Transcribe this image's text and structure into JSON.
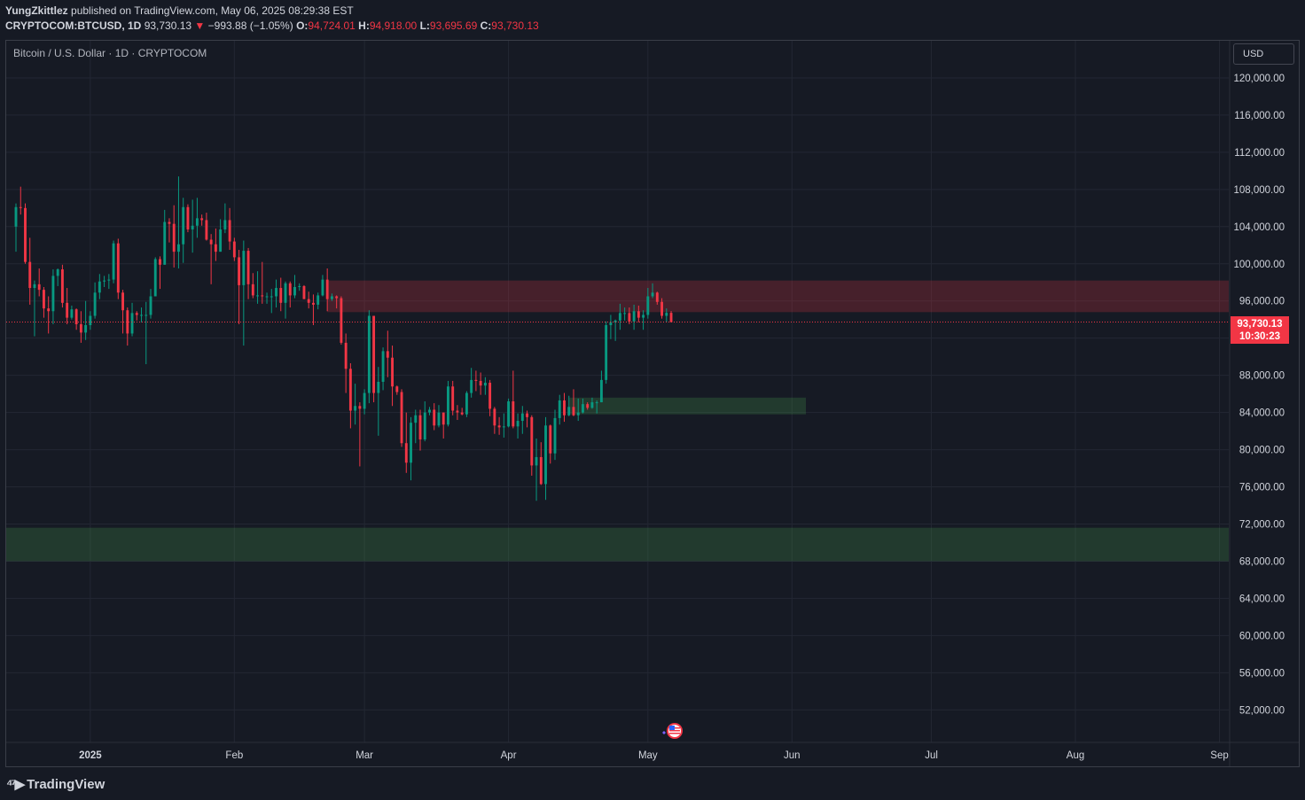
{
  "header": {
    "author": "YungZkittlez",
    "published_text": "published on TradingView.com, May 06, 2025 08:29:38 EST",
    "symbol": "CRYPTOCOM:BTCUSD, 1D",
    "last": "93,730.13",
    "change_arrow": "▼",
    "change": "−993.88 (−1.05%)",
    "o_label": "O:",
    "o": "94,724.01",
    "h_label": "H:",
    "h": "94,918.00",
    "l_label": "L:",
    "l": "93,695.69",
    "c_label": "C:",
    "c": "93,730.13"
  },
  "legend": {
    "title": "Bitcoin / U.S. Dollar · 1D · CRYPTOCOM"
  },
  "currency_button": "USD",
  "price_tag": {
    "price": "93,730.13",
    "countdown": "10:30:23"
  },
  "footer": {
    "brand": "TradingView"
  },
  "colors": {
    "up": "#089981",
    "down": "#f23645",
    "background": "#161a24",
    "supply_zone": "#f23645",
    "demand_zone": "#4caf50"
  },
  "chart_data": {
    "type": "candlestick",
    "symbol": "BTCUSD",
    "timeframe": "1D",
    "ylim": [
      48500,
      124000
    ],
    "y_ticks": [
      52000,
      56000,
      60000,
      64000,
      68000,
      72000,
      76000,
      80000,
      84000,
      88000,
      92000,
      96000,
      100000,
      104000,
      108000,
      112000,
      116000,
      120000
    ],
    "y_tick_labels": [
      "52,000.00",
      "56,000.00",
      "60,000.00",
      "64,000.00",
      "68,000.00",
      "72,000.00",
      "76,000.00",
      "80,000.00",
      "84,000.00",
      "88,000.00",
      "",
      "96,000.00",
      "100,000.00",
      "104,000.00",
      "108,000.00",
      "112,000.00",
      "116,000.00",
      "120,000.00"
    ],
    "x_range": [
      "2024-12-16",
      "2025-09-03"
    ],
    "x_ticks": [
      {
        "date": "2025-01-01",
        "label": "2025",
        "bold": true
      },
      {
        "date": "2025-02-01",
        "label": "Feb"
      },
      {
        "date": "2025-03-01",
        "label": "Mar"
      },
      {
        "date": "2025-04-01",
        "label": "Apr"
      },
      {
        "date": "2025-05-01",
        "label": "May"
      },
      {
        "date": "2025-06-01",
        "label": "Jun"
      },
      {
        "date": "2025-07-01",
        "label": "Jul"
      },
      {
        "date": "2025-08-01",
        "label": "Aug"
      },
      {
        "date": "2025-09-01",
        "label": "Sep"
      }
    ],
    "last_price": 93730.13,
    "zones": [
      {
        "type": "supply",
        "from": "2025-02-21",
        "to_edge": true,
        "low": 94800,
        "high": 98200
      },
      {
        "type": "demand",
        "from": "2025-04-14",
        "to": "2025-06-04",
        "low": 83800,
        "high": 85600
      },
      {
        "type": "demand",
        "from_edge": true,
        "to_edge": true,
        "low": 68000,
        "high": 71600
      }
    ],
    "candles": [
      [
        "2024-12-16",
        104000,
        106500,
        101300,
        106100
      ],
      [
        "2024-12-17",
        106100,
        108300,
        105300,
        106000
      ],
      [
        "2024-12-18",
        106000,
        106500,
        100000,
        100200
      ],
      [
        "2024-12-19",
        100200,
        102800,
        95600,
        97400
      ],
      [
        "2024-12-20",
        97400,
        98200,
        92200,
        97800
      ],
      [
        "2024-12-21",
        97800,
        99500,
        96500,
        97200
      ],
      [
        "2024-12-22",
        97200,
        97500,
        94200,
        95200
      ],
      [
        "2024-12-23",
        95200,
        96500,
        92500,
        94900
      ],
      [
        "2024-12-24",
        94900,
        99400,
        93500,
        98700
      ],
      [
        "2024-12-25",
        98700,
        99500,
        97600,
        99400
      ],
      [
        "2024-12-26",
        99400,
        99900,
        95300,
        95800
      ],
      [
        "2024-12-27",
        95800,
        97400,
        93500,
        94200
      ],
      [
        "2024-12-28",
        94200,
        95500,
        94000,
        95100
      ],
      [
        "2024-12-29",
        95100,
        95200,
        92900,
        93500
      ],
      [
        "2024-12-30",
        93500,
        94900,
        91500,
        92600
      ],
      [
        "2024-12-31",
        92600,
        96000,
        91800,
        93400
      ],
      [
        "2025-01-01",
        93400,
        94900,
        92900,
        94400
      ],
      [
        "2025-01-02",
        94400,
        98000,
        94100,
        96900
      ],
      [
        "2025-01-03",
        96900,
        98900,
        96200,
        98100
      ],
      [
        "2025-01-04",
        98100,
        98700,
        97500,
        98200
      ],
      [
        "2025-01-05",
        98200,
        98900,
        97300,
        98300
      ],
      [
        "2025-01-06",
        98300,
        102500,
        97900,
        102200
      ],
      [
        "2025-01-07",
        102200,
        102700,
        96200,
        96900
      ],
      [
        "2025-01-08",
        96900,
        97200,
        92500,
        95000
      ],
      [
        "2025-01-09",
        95000,
        95300,
        91200,
        92500
      ],
      [
        "2025-01-10",
        92500,
        95800,
        92200,
        94700
      ],
      [
        "2025-01-11",
        94700,
        94900,
        93900,
        94500
      ],
      [
        "2025-01-12",
        94500,
        95300,
        93700,
        94500
      ],
      [
        "2025-01-13",
        94500,
        95900,
        89200,
        94500
      ],
      [
        "2025-01-14",
        94500,
        97300,
        94100,
        96500
      ],
      [
        "2025-01-15",
        96500,
        100700,
        96500,
        100500
      ],
      [
        "2025-01-16",
        100500,
        100800,
        97300,
        99900
      ],
      [
        "2025-01-17",
        99900,
        105800,
        99900,
        104500
      ],
      [
        "2025-01-18",
        104500,
        104900,
        102300,
        104300
      ],
      [
        "2025-01-19",
        104300,
        106300,
        99600,
        101300
      ],
      [
        "2025-01-20",
        101300,
        109400,
        99500,
        102100
      ],
      [
        "2025-01-21",
        102100,
        107100,
        100100,
        106100
      ],
      [
        "2025-01-22",
        106100,
        106400,
        103400,
        103700
      ],
      [
        "2025-01-23",
        103700,
        106900,
        101200,
        104100
      ],
      [
        "2025-01-24",
        104100,
        107100,
        102800,
        104900
      ],
      [
        "2025-01-25",
        104900,
        105300,
        104100,
        104700
      ],
      [
        "2025-01-26",
        104700,
        105500,
        102500,
        102600
      ],
      [
        "2025-01-27",
        102600,
        103200,
        97800,
        102100
      ],
      [
        "2025-01-28",
        102100,
        103800,
        100300,
        101300
      ],
      [
        "2025-01-29",
        101300,
        104800,
        101300,
        103700
      ],
      [
        "2025-01-30",
        103700,
        106500,
        103300,
        104700
      ],
      [
        "2025-01-31",
        104700,
        106000,
        101500,
        102400
      ],
      [
        "2025-02-01",
        102400,
        102800,
        100300,
        100700
      ],
      [
        "2025-02-02",
        100700,
        101500,
        93500,
        97700
      ],
      [
        "2025-02-03",
        97700,
        102500,
        91200,
        101400
      ],
      [
        "2025-02-04",
        101400,
        101700,
        96200,
        97800
      ],
      [
        "2025-02-05",
        97800,
        99000,
        96300,
        96600
      ],
      [
        "2025-02-06",
        96600,
        99200,
        95700,
        96600
      ],
      [
        "2025-02-07",
        96600,
        100200,
        95700,
        96500
      ],
      [
        "2025-02-08",
        96500,
        96900,
        95700,
        96500
      ],
      [
        "2025-02-09",
        96500,
        97300,
        94700,
        96500
      ],
      [
        "2025-02-10",
        96500,
        98300,
        95300,
        97400
      ],
      [
        "2025-02-11",
        97400,
        98500,
        94900,
        95800
      ],
      [
        "2025-02-12",
        95800,
        98100,
        94100,
        97900
      ],
      [
        "2025-02-13",
        97900,
        98100,
        95300,
        96600
      ],
      [
        "2025-02-14",
        96600,
        98800,
        96300,
        97500
      ],
      [
        "2025-02-15",
        97500,
        97900,
        97100,
        97600
      ],
      [
        "2025-02-16",
        97600,
        97700,
        96200,
        96200
      ],
      [
        "2025-02-17",
        96200,
        97000,
        95200,
        95800
      ],
      [
        "2025-02-18",
        95800,
        96700,
        93400,
        95600
      ],
      [
        "2025-02-19",
        95600,
        96900,
        95100,
        96600
      ],
      [
        "2025-02-20",
        96600,
        98800,
        96500,
        98300
      ],
      [
        "2025-02-21",
        98300,
        99500,
        94900,
        96200
      ],
      [
        "2025-02-22",
        96200,
        96800,
        96000,
        96500
      ],
      [
        "2025-02-23",
        96500,
        96600,
        95200,
        96300
      ],
      [
        "2025-02-24",
        96300,
        96500,
        91300,
        91500
      ],
      [
        "2025-02-25",
        91500,
        92500,
        86100,
        88700
      ],
      [
        "2025-02-26",
        88700,
        89300,
        82300,
        84200
      ],
      [
        "2025-02-27",
        84200,
        87100,
        82700,
        84700
      ],
      [
        "2025-02-28",
        84700,
        85100,
        78200,
        84400
      ],
      [
        "2025-03-01",
        84400,
        86500,
        83800,
        86100
      ],
      [
        "2025-03-02",
        86100,
        95000,
        85000,
        94400
      ],
      [
        "2025-03-03",
        94400,
        94400,
        85100,
        86100
      ],
      [
        "2025-03-04",
        86100,
        88900,
        81500,
        87300
      ],
      [
        "2025-03-05",
        87300,
        91000,
        86400,
        90600
      ],
      [
        "2025-03-06",
        90600,
        92800,
        87800,
        89900
      ],
      [
        "2025-03-07",
        89900,
        91200,
        84700,
        86800
      ],
      [
        "2025-03-08",
        86800,
        86900,
        85900,
        86200
      ],
      [
        "2025-03-09",
        86200,
        86500,
        80300,
        80700
      ],
      [
        "2025-03-10",
        80700,
        84000,
        77500,
        78600
      ],
      [
        "2025-03-11",
        78600,
        83500,
        76700,
        82900
      ],
      [
        "2025-03-12",
        82900,
        84300,
        80700,
        83700
      ],
      [
        "2025-03-13",
        83700,
        84300,
        79900,
        81100
      ],
      [
        "2025-03-14",
        81100,
        85200,
        80900,
        84000
      ],
      [
        "2025-03-15",
        84000,
        84600,
        83700,
        84300
      ],
      [
        "2025-03-16",
        84300,
        85000,
        82100,
        82600
      ],
      [
        "2025-03-17",
        82600,
        84800,
        82400,
        84000
      ],
      [
        "2025-03-18",
        84000,
        84000,
        81200,
        82700
      ],
      [
        "2025-03-19",
        82700,
        87400,
        82500,
        86800
      ],
      [
        "2025-03-20",
        86800,
        87400,
        83700,
        84200
      ],
      [
        "2025-03-21",
        84200,
        84800,
        83200,
        84000
      ],
      [
        "2025-03-22",
        84000,
        84500,
        83700,
        83800
      ],
      [
        "2025-03-23",
        83800,
        86300,
        83500,
        86100
      ],
      [
        "2025-03-24",
        86100,
        88800,
        85600,
        87500
      ],
      [
        "2025-03-25",
        87500,
        88500,
        86300,
        87400
      ],
      [
        "2025-03-26",
        87400,
        88300,
        85900,
        86900
      ],
      [
        "2025-03-27",
        86900,
        87800,
        85900,
        87200
      ],
      [
        "2025-03-28",
        87200,
        87500,
        83600,
        84400
      ],
      [
        "2025-03-29",
        84400,
        84600,
        81700,
        82600
      ],
      [
        "2025-03-30",
        82600,
        83500,
        81600,
        82400
      ],
      [
        "2025-03-31",
        82400,
        83900,
        81300,
        82500
      ],
      [
        "2025-04-01",
        82500,
        85500,
        82400,
        85200
      ],
      [
        "2025-04-02",
        85200,
        88500,
        82300,
        82500
      ],
      [
        "2025-04-03",
        82500,
        83900,
        81200,
        83100
      ],
      [
        "2025-04-04",
        83100,
        84700,
        81700,
        83900
      ],
      [
        "2025-04-05",
        83900,
        84200,
        82400,
        83500
      ],
      [
        "2025-04-06",
        83500,
        83700,
        77200,
        78300
      ],
      [
        "2025-04-07",
        78300,
        81200,
        74500,
        79200
      ],
      [
        "2025-04-08",
        79200,
        80800,
        76200,
        76300
      ],
      [
        "2025-04-09",
        76300,
        83500,
        74600,
        82600
      ],
      [
        "2025-04-10",
        82600,
        82700,
        78500,
        79600
      ],
      [
        "2025-04-11",
        79600,
        84300,
        78900,
        83400
      ],
      [
        "2025-04-12",
        83400,
        85900,
        82700,
        85300
      ],
      [
        "2025-04-13",
        85300,
        86100,
        83000,
        83700
      ],
      [
        "2025-04-14",
        83700,
        85800,
        83600,
        84600
      ],
      [
        "2025-04-15",
        84600,
        86500,
        83600,
        83700
      ],
      [
        "2025-04-16",
        83700,
        85500,
        83100,
        84000
      ],
      [
        "2025-04-17",
        84000,
        85500,
        83900,
        84900
      ],
      [
        "2025-04-18",
        84900,
        85100,
        84300,
        84500
      ],
      [
        "2025-04-19",
        84500,
        85600,
        84400,
        85100
      ],
      [
        "2025-04-20",
        85100,
        85300,
        83900,
        85100
      ],
      [
        "2025-04-21",
        85100,
        88500,
        85100,
        87500
      ],
      [
        "2025-04-22",
        87500,
        93800,
        87100,
        93400
      ],
      [
        "2025-04-23",
        93400,
        94500,
        91900,
        93700
      ],
      [
        "2025-04-24",
        93700,
        94000,
        91700,
        93900
      ],
      [
        "2025-04-25",
        93900,
        95700,
        92900,
        94700
      ],
      [
        "2025-04-26",
        94700,
        95300,
        93900,
        94700
      ],
      [
        "2025-04-27",
        94700,
        95300,
        93500,
        93800
      ],
      [
        "2025-04-28",
        93800,
        95600,
        92900,
        94900
      ],
      [
        "2025-04-29",
        94900,
        95500,
        93700,
        94200
      ],
      [
        "2025-04-30",
        94200,
        95000,
        92900,
        94500
      ],
      [
        "2025-05-01",
        94500,
        97400,
        94100,
        96500
      ],
      [
        "2025-05-02",
        96500,
        97900,
        96300,
        96900
      ],
      [
        "2025-05-03",
        96900,
        97000,
        95600,
        95900
      ],
      [
        "2025-05-04",
        95900,
        96300,
        94100,
        94400
      ],
      [
        "2025-05-05",
        94400,
        95200,
        93700,
        94724
      ],
      [
        "2025-05-06",
        94724,
        94918,
        93696,
        93730
      ]
    ]
  }
}
